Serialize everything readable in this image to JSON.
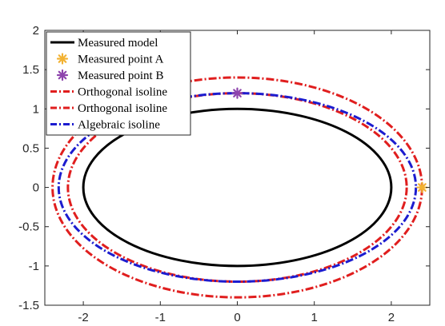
{
  "chart_data": {
    "type": "line",
    "title": "",
    "xlabel": "",
    "ylabel": "",
    "xlim": [
      -2.5,
      2.5
    ],
    "ylim": [
      -1.5,
      2
    ],
    "xticks": [
      -2,
      -1,
      0,
      1,
      2
    ],
    "xtick_labels": [
      "-2",
      "-1",
      "0",
      "1",
      "2"
    ],
    "yticks": [
      -1.5,
      -1,
      -0.5,
      0,
      0.5,
      1,
      1.5,
      2
    ],
    "ytick_labels": [
      "-1.5",
      "-1",
      "-0.5",
      "0",
      "0.5",
      "1",
      "1.5",
      "2"
    ],
    "grid": false,
    "legend_position": "top-left",
    "series": [
      {
        "name": "Measured model",
        "kind": "ellipse",
        "cx": 0,
        "cy": 0,
        "rx": 2.0,
        "ry": 1.0,
        "color": "#000000",
        "style": "solid"
      },
      {
        "name": "Measured point A",
        "kind": "point",
        "x": 2.4,
        "y": 0,
        "color": "#f2b233",
        "marker": "asterisk"
      },
      {
        "name": "Measured point B",
        "kind": "point",
        "x": 0,
        "y": 1.2,
        "color": "#8e44ad",
        "marker": "asterisk"
      },
      {
        "name": "Orthogonal isoline",
        "kind": "ellipse",
        "cx": 0,
        "cy": 0,
        "rx": 2.4,
        "ry": 1.4,
        "color": "#e01e1e",
        "style": "dashdot"
      },
      {
        "name": "Orthogonal isoline",
        "kind": "ellipse",
        "cx": 0,
        "cy": 0,
        "rx": 2.2,
        "ry": 1.2,
        "color": "#e01e1e",
        "style": "dashdot"
      },
      {
        "name": "Algebraic isoline",
        "kind": "ellipse",
        "cx": 0,
        "cy": 0,
        "rx": 2.32,
        "ry": 1.2,
        "color": "#1c1ccf",
        "style": "dashdot"
      }
    ]
  }
}
